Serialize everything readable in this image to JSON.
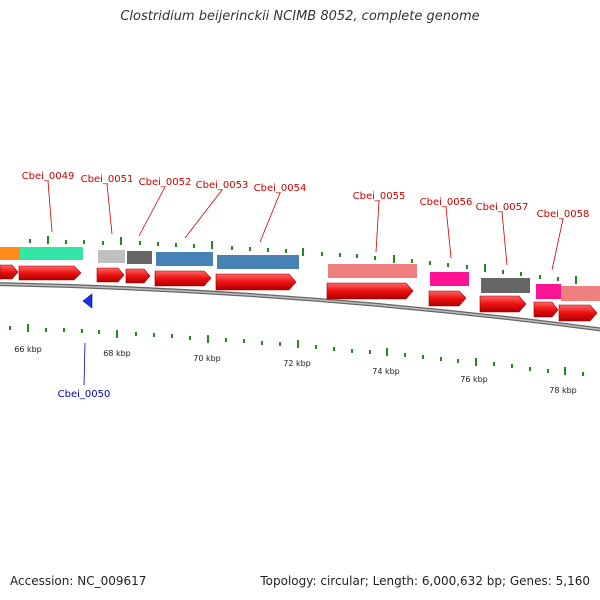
{
  "title": "Clostridium beijerinckii NCIMB 8052, complete genome",
  "footer": {
    "accession": "Accession: NC_009617",
    "summary": "Topology: circular; Length: 6,000,632 bp; Genes: 5,160"
  },
  "scale_labels": [
    "66 kbp",
    "68 kbp",
    "70 kbp",
    "72 kbp",
    "74 kbp",
    "76 kbp",
    "78 kbp"
  ],
  "gene_labels": [
    {
      "name": "Cbei_0049",
      "strand": "+"
    },
    {
      "name": "Cbei_0050",
      "strand": "-"
    },
    {
      "name": "Cbei_0051",
      "strand": "+"
    },
    {
      "name": "Cbei_0052",
      "strand": "+"
    },
    {
      "name": "Cbei_0053",
      "strand": "+"
    },
    {
      "name": "Cbei_0054",
      "strand": "+"
    },
    {
      "name": "Cbei_0055",
      "strand": "+"
    },
    {
      "name": "Cbei_0056",
      "strand": "+"
    },
    {
      "name": "Cbei_0057",
      "strand": "+"
    },
    {
      "name": "Cbei_0058",
      "strand": "+"
    }
  ],
  "colors": {
    "forward_arrow": "#ee1111",
    "reverse_arrow": "#1133ee",
    "backbone": "#888888",
    "tick": "#228822",
    "label_forward": "#cc0000",
    "label_reverse": "#0000bb"
  }
}
